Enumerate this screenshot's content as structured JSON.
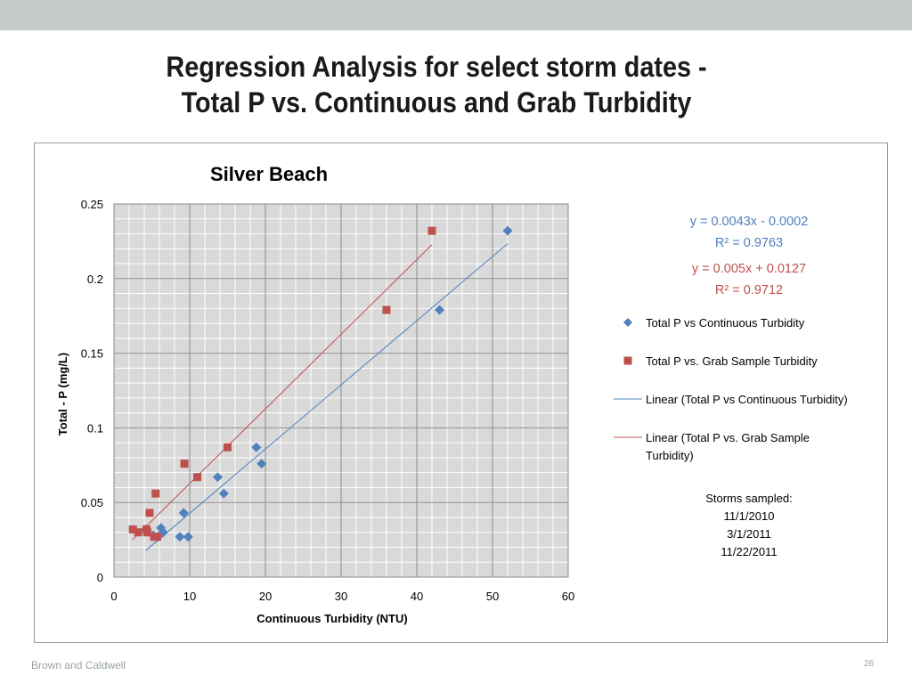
{
  "slide": {
    "title_line1": "Regression Analysis for select storm dates -",
    "title_line2": "Total P vs. Continuous and Grab Turbidity",
    "footer_left": "Brown and Caldwell",
    "page_number": "26"
  },
  "chart_data": {
    "type": "scatter",
    "title": "Silver Beach",
    "xlabel": "Continuous Turbidity (NTU)",
    "ylabel": "Total - P (mg/L)",
    "xlim": [
      0,
      60
    ],
    "ylim": [
      0,
      0.25
    ],
    "x_ticks": [
      "0",
      "10",
      "20",
      "30",
      "40",
      "50",
      "60"
    ],
    "y_ticks": [
      "0",
      "0.05",
      "0.1",
      "0.15",
      "0.2",
      "0.25"
    ],
    "grid": true,
    "legend_position": "right",
    "series": [
      {
        "name": "Total P vs Continuous Turbidity",
        "marker": "diamond",
        "color": "#4f81bd",
        "points": [
          [
            4.2,
            0.032
          ],
          [
            5.2,
            0.028
          ],
          [
            5.8,
            0.027
          ],
          [
            6.2,
            0.033
          ],
          [
            6.5,
            0.03
          ],
          [
            8.7,
            0.027
          ],
          [
            9.2,
            0.043
          ],
          [
            9.8,
            0.027
          ],
          [
            13.7,
            0.067
          ],
          [
            14.5,
            0.056
          ],
          [
            18.8,
            0.087
          ],
          [
            19.5,
            0.076
          ],
          [
            43.0,
            0.179
          ],
          [
            52.0,
            0.232
          ]
        ]
      },
      {
        "name": "Total P vs. Grab Sample Turbidity",
        "marker": "square",
        "color": "#c0504d",
        "points": [
          [
            2.5,
            0.032
          ],
          [
            3.2,
            0.03
          ],
          [
            4.3,
            0.032
          ],
          [
            4.4,
            0.03
          ],
          [
            4.7,
            0.043
          ],
          [
            5.3,
            0.027
          ],
          [
            5.5,
            0.056
          ],
          [
            5.7,
            0.027
          ],
          [
            9.3,
            0.076
          ],
          [
            11.0,
            0.067
          ],
          [
            15.0,
            0.087
          ],
          [
            36.0,
            0.179
          ],
          [
            42.0,
            0.232
          ]
        ]
      }
    ],
    "trendlines": [
      {
        "name": "Linear (Total P vs Continuous Turbidity)",
        "color": "#4f81bd",
        "slope": 0.0043,
        "intercept": -0.0002,
        "x_range": [
          4.2,
          52.0
        ],
        "equation": "y = 0.0043x - 0.0002",
        "r2": "R² = 0.9763"
      },
      {
        "name": "Linear (Total P vs. Grab Sample Turbidity)",
        "color": "#c0504d",
        "slope": 0.005,
        "intercept": 0.0127,
        "x_range": [
          2.5,
          42.0
        ],
        "equation": "y = 0.005x + 0.0127",
        "r2": "R² = 0.9712"
      }
    ],
    "legend_entries": [
      {
        "marker": "diamond",
        "color": "#4f81bd",
        "lines": [
          "Total P vs Continuous Turbidity"
        ]
      },
      {
        "marker": "square",
        "color": "#c0504d",
        "lines": [
          "Total P vs. Grab Sample Turbidity"
        ]
      },
      {
        "marker": "line",
        "color": "#4f81bd",
        "lines": [
          "Linear (Total P vs Continuous Turbidity)"
        ]
      },
      {
        "marker": "line",
        "color": "#c0504d",
        "lines": [
          "Linear (Total P vs. Grab Sample",
          "Turbidity)"
        ]
      }
    ],
    "annotation": {
      "lines": [
        "Storms sampled:",
        "11/1/2010",
        "3/1/2011",
        "11/22/2011"
      ]
    }
  }
}
